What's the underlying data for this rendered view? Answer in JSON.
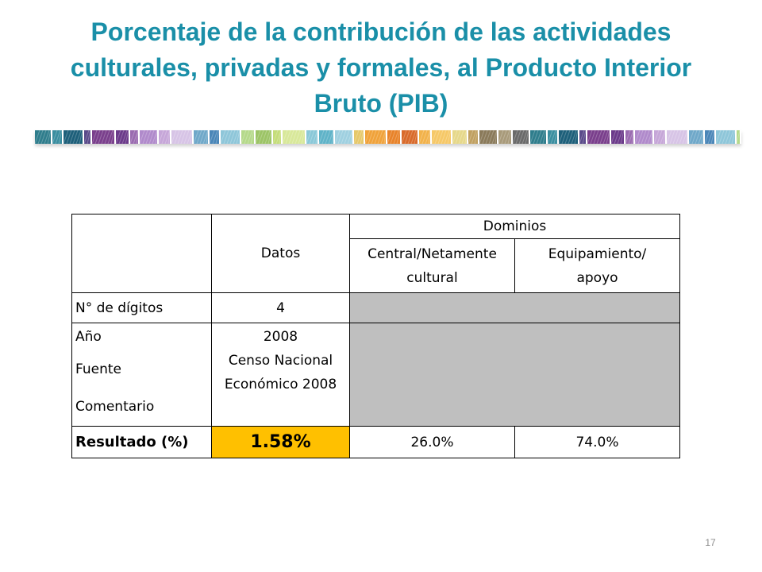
{
  "slide": {
    "title": "Porcentaje de la contribución de las actividades culturales, privadas y formales, al Producto Interior Bruto (PIB)",
    "page_number": "17"
  },
  "colors": {
    "title": "#1a8fa8",
    "highlight": "#ffc000",
    "grey_cell": "#bfbfbf"
  },
  "table": {
    "header": {
      "datos": "Datos",
      "dominios": "Dominios",
      "central_line1": "Central/Netamente",
      "central_line2": "cultural",
      "equipamiento_line1": "Equipamiento/",
      "equipamiento_line2": "apoyo"
    },
    "rows": {
      "digitos": {
        "label": "N° de dígitos",
        "value": "4"
      },
      "anio": {
        "label": "Año",
        "value": "2008"
      },
      "fuente": {
        "label": "Fuente",
        "value_line1": "Censo Nacional",
        "value_line2": "Económico 2008"
      },
      "comentario": {
        "label": "Comentario",
        "value": ""
      },
      "resultado": {
        "label": "Resultado (%)",
        "value": "1.58%",
        "central": "26.0%",
        "equipamiento": "74.0%"
      }
    }
  }
}
